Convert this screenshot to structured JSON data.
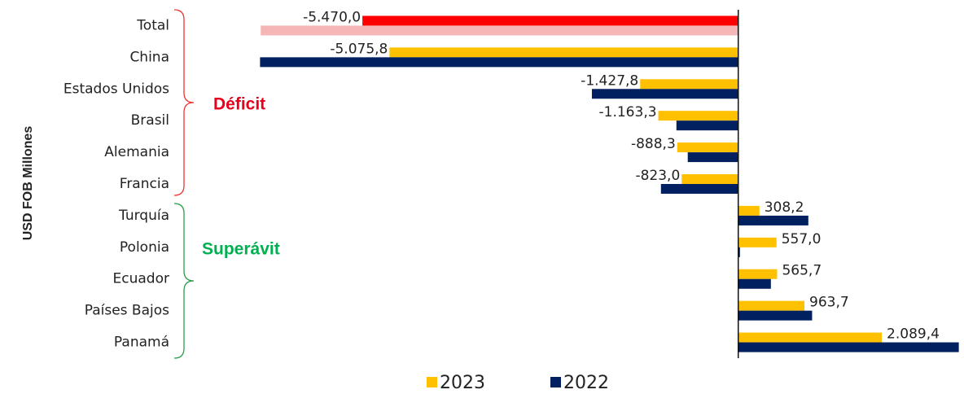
{
  "chart_data": {
    "type": "barh",
    "y_label": "USD FOB Millones",
    "categories": [
      "Total",
      "China",
      "Estados Unidos",
      "Brasil",
      "Alemania",
      "Francia",
      "Turquía",
      "Polonia",
      "Ecuador",
      "Países Bajos",
      "Panamá"
    ],
    "series": [
      {
        "name": "2023",
        "color": "#FFC000",
        "point_colors": [
          "#FF0000",
          "#FFC000",
          "#FFC000",
          "#FFC000",
          "#FFC000",
          "#FFC000",
          "#FFC000",
          "#FFC000",
          "#FFC000",
          "#FFC000",
          "#FFC000"
        ],
        "values": [
          -5470.0,
          -5075.8,
          -1427.8,
          -1163.3,
          -888.3,
          -823.0,
          308.2,
          557.0,
          565.7,
          963.7,
          2089.4
        ],
        "value_labels": [
          "-5.470,0",
          "-5.075,8",
          "-1.427,8",
          "-1.163,3",
          "-888,3",
          "-823,0",
          "308,2",
          "557,0",
          "565,7",
          "963,7",
          "2.089,4"
        ]
      },
      {
        "name": "2022",
        "color": "#002060",
        "point_colors": [
          "#F4B6B6",
          "#002060",
          "#002060",
          "#002060",
          "#002060",
          "#002060",
          "#002060",
          "#002060",
          "#002060",
          "#002060",
          "#002060"
        ],
        "values": [
          -6950,
          -6960,
          -2130,
          -900,
          -735,
          -1125,
          1020,
          25,
          475,
          1075,
          3210
        ]
      }
    ],
    "xlim": [
      -7000,
      3250
    ],
    "annotations": [
      "Déficit",
      "Superávit"
    ],
    "legend": "bottom"
  }
}
